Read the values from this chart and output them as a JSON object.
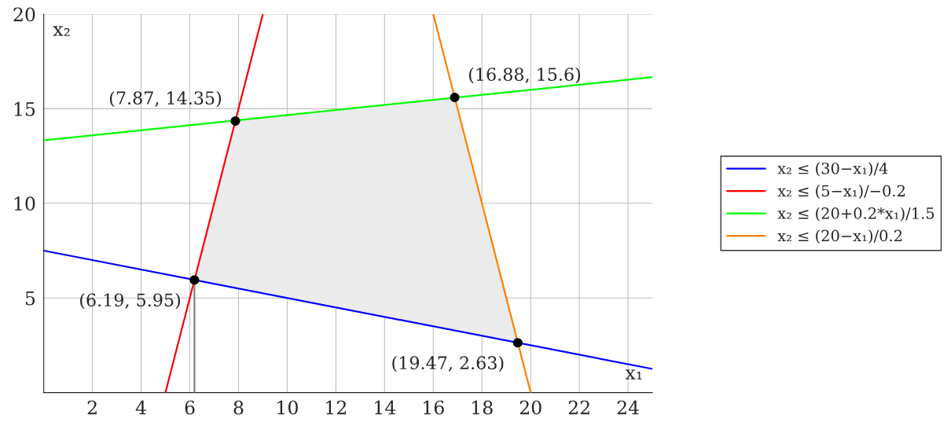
{
  "chart_data": {
    "type": "line",
    "xlabel": "x₁",
    "ylabel": "x₂",
    "xlim": [
      0,
      25
    ],
    "xticks": [
      2,
      4,
      6,
      8,
      10,
      12,
      14,
      16,
      18,
      20,
      22,
      24
    ],
    "ylim": [
      0,
      20
    ],
    "yticks": [
      5,
      10,
      15,
      20
    ],
    "grid": true,
    "legend": "right",
    "line_style": "solid",
    "series": [
      {
        "type": "area",
        "color": "#ebebeb",
        "x": [
          6.19,
          7.87,
          16.88,
          19.47
        ],
        "values": [
          5.95,
          14.35,
          15.6,
          2.63
        ]
      },
      {
        "name": "x₂ ≤ (30−x₁)/4",
        "color": "#0000ff",
        "x": [
          0,
          25
        ],
        "values": [
          7.5,
          1.25
        ]
      },
      {
        "name": "x₂ ≤ (5−x₁)/−0.2",
        "color": "#ff0000",
        "x": [
          5,
          9
        ],
        "values": [
          0,
          20
        ]
      },
      {
        "name": "x₂ ≤ (20+0.2*x₁)/1.5",
        "color": "#00ff00",
        "x": [
          0,
          25
        ],
        "values": [
          13.33,
          16.67
        ]
      },
      {
        "name": "x₂ ≤ (20−x₁)/0.2",
        "color": "#ff8000",
        "x": [
          16,
          20
        ],
        "values": [
          20,
          0
        ]
      },
      {
        "color": "#808080",
        "x": [
          6.19,
          6.19
        ],
        "values": [
          0,
          5.95
        ]
      },
      {
        "type": "scatter",
        "marker": "circle",
        "color": "#000000",
        "x": [
          6.19,
          7.87,
          16.88,
          19.47
        ],
        "values": [
          5.95,
          14.35,
          15.6,
          2.63
        ]
      }
    ],
    "annotations": [
      {
        "text": "(7.87, 14.35)",
        "x": 7.87,
        "y": 14.35
      },
      {
        "text": "(16.88, 15.6)",
        "x": 16.88,
        "y": 15.6
      },
      {
        "text": "(6.19, 5.95)",
        "x": 6.19,
        "y": 5.95
      },
      {
        "text": "(19.47, 2.63)",
        "x": 19.47,
        "y": 2.63
      }
    ]
  }
}
